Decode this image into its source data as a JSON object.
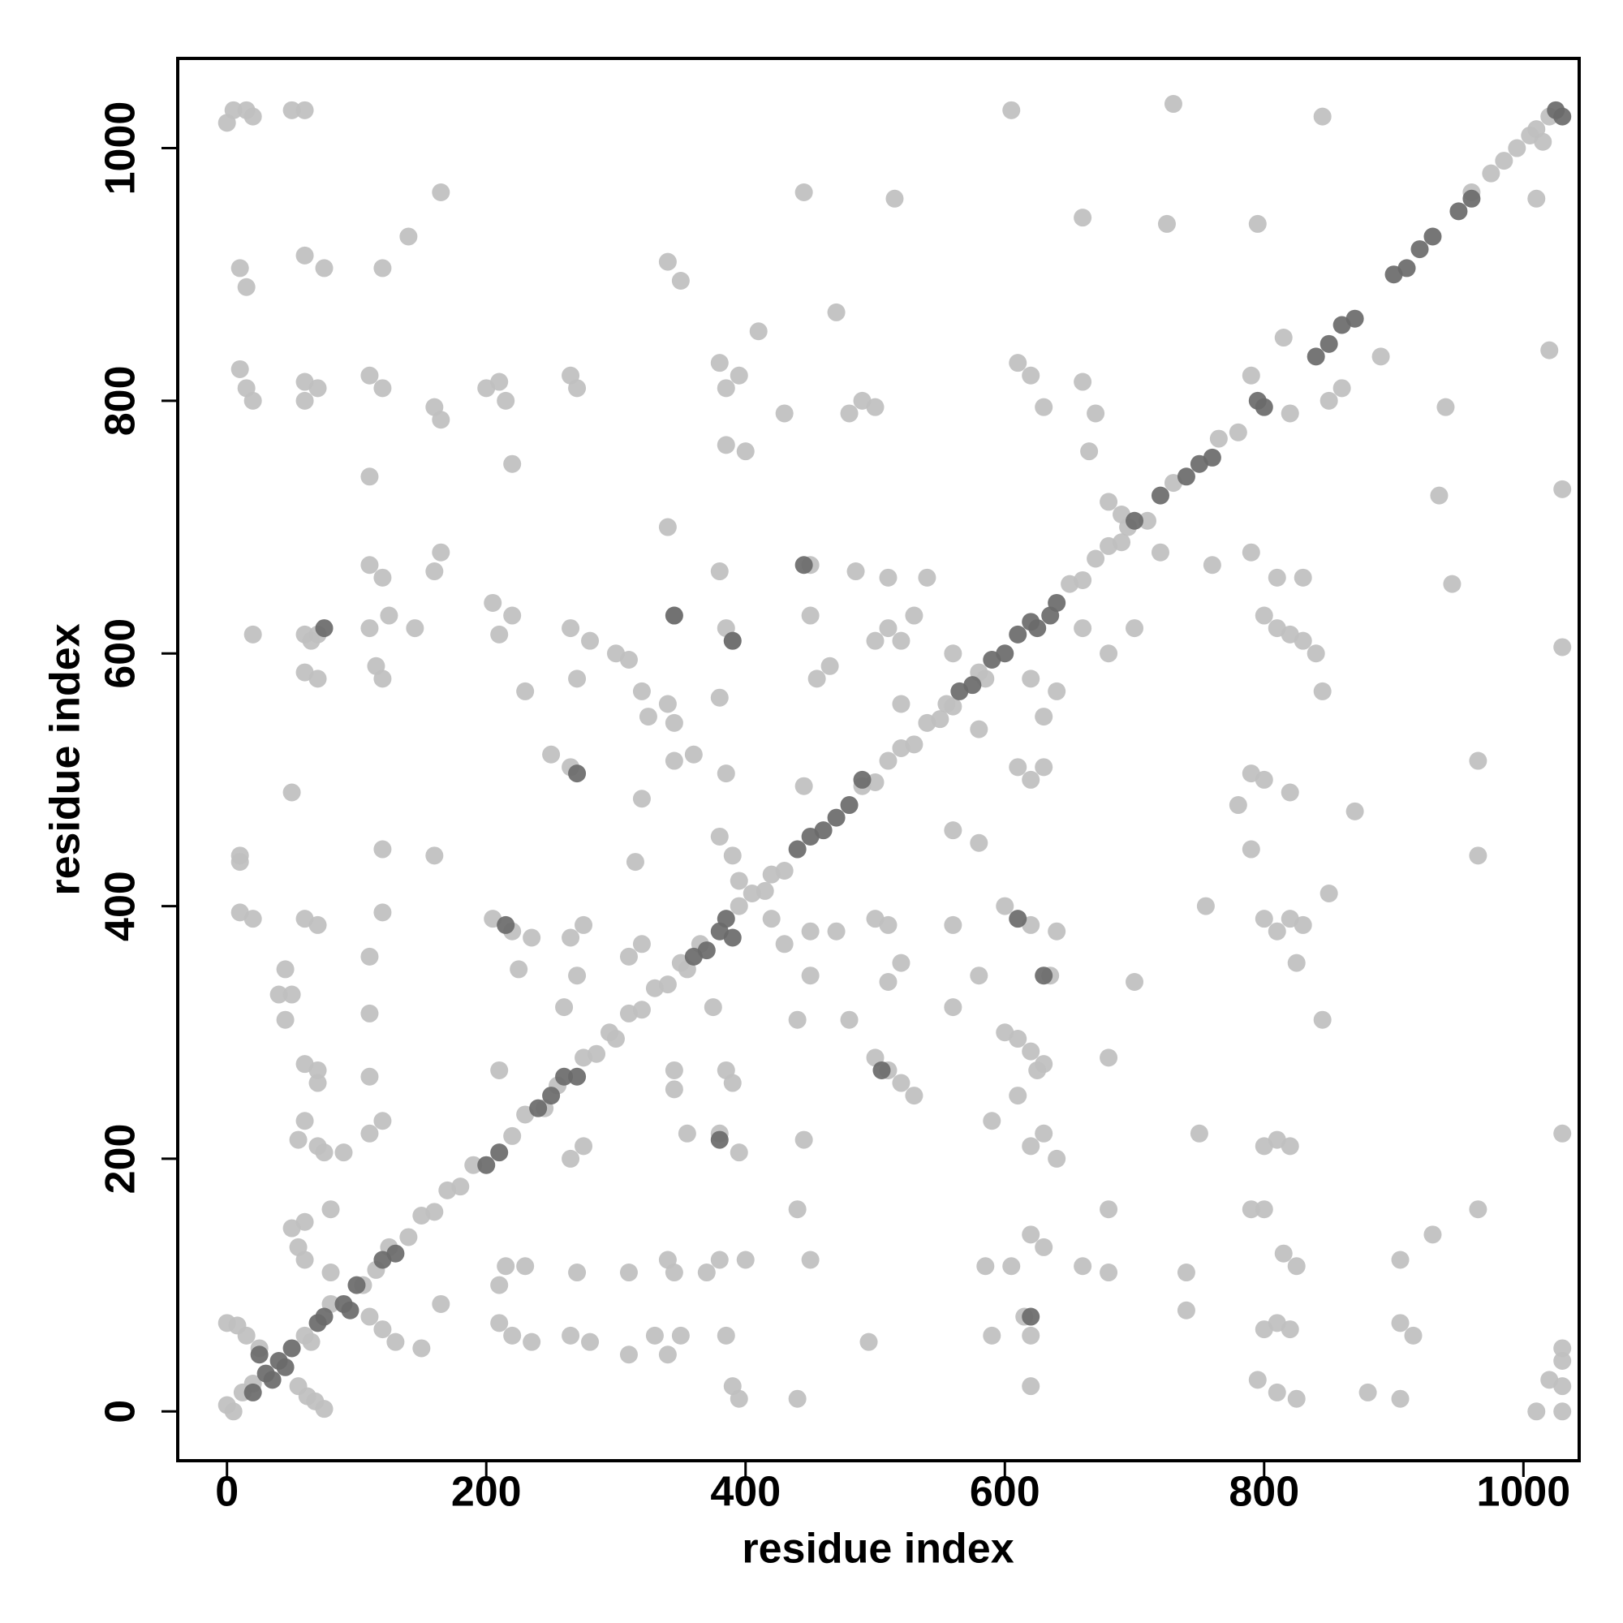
{
  "chart_data": {
    "type": "scatter",
    "xlabel": "residue index",
    "ylabel": "residue index",
    "xlim": [
      -38,
      1043
    ],
    "ylim": [
      -39,
      1071
    ],
    "xticks": [
      0,
      200,
      400,
      600,
      800,
      1000
    ],
    "yticks": [
      0,
      200,
      400,
      600,
      800,
      1000
    ],
    "grid": false,
    "series": [
      {
        "color": "#bfbfbf",
        "x": [
          0,
          5,
          12,
          20,
          80,
          105,
          115,
          125,
          140,
          150,
          160,
          170,
          180,
          190,
          220,
          230,
          245,
          255,
          275,
          285,
          295,
          300,
          310,
          320,
          330,
          340,
          350,
          355,
          365,
          395,
          405,
          415,
          420,
          430,
          490,
          500,
          510,
          520,
          530,
          540,
          550,
          555,
          560,
          580,
          585,
          650,
          660,
          670,
          680,
          690,
          695,
          710,
          730,
          765,
          780,
          960,
          975,
          985,
          995,
          1005,
          1010,
          1015,
          1020,
          0,
          8,
          15,
          25,
          55,
          62,
          68,
          75,
          60,
          65,
          0,
          5,
          15,
          50,
          60,
          20,
          10,
          15,
          60,
          75,
          10,
          15,
          20,
          60,
          70,
          60,
          110,
          120,
          160,
          165,
          200,
          210,
          215,
          220,
          265,
          270,
          380,
          385,
          395,
          410,
          400,
          385,
          430,
          470,
          480,
          490,
          500,
          610,
          620,
          630,
          660,
          670,
          665,
          605,
          730,
          845,
          660,
          725,
          795,
          850,
          860,
          815,
          820,
          790,
          165,
          140,
          120,
          340,
          350,
          445,
          515,
          1010,
          1020,
          890,
          940,
          935,
          1030,
          945,
          1030,
          965,
          965,
          965,
          1030,
          930,
          905,
          905,
          915,
          880,
          905,
          1030,
          1030,
          1030,
          1020,
          1010,
          1030,
          795,
          810,
          825,
          800,
          810,
          820,
          800,
          810,
          820,
          800,
          790,
          815,
          825,
          800,
          810,
          820,
          830,
          825,
          845,
          790,
          790,
          800,
          820,
          780,
          850,
          870,
          755,
          700,
          750,
          740,
          740,
          680,
          680,
          660,
          680,
          620,
          630,
          605,
          615,
          620,
          620,
          590,
          585,
          620,
          630,
          640,
          610,
          625,
          630,
          600,
          610,
          620,
          590,
          635,
          560,
          580,
          560,
          510,
          520,
          500,
          510,
          500,
          510,
          520,
          530,
          495,
          600,
          620,
          640,
          560,
          580,
          620,
          630,
          610,
          630,
          640,
          620,
          580,
          520,
          500,
          510,
          530,
          510,
          540,
          560,
          660,
          680,
          700,
          720,
          680,
          690,
          760,
          790,
          800,
          810,
          820,
          830,
          840,
          810,
          830,
          845,
          60,
          65,
          70,
          60,
          70,
          20,
          10,
          10,
          10,
          20,
          50,
          45,
          50,
          40,
          45,
          60,
          70,
          70,
          60,
          55,
          70,
          75,
          90,
          60,
          70,
          60,
          50,
          55,
          60,
          80,
          80,
          110,
          110,
          120,
          110,
          115,
          120,
          125,
          145,
          160,
          165,
          110,
          120,
          110,
          110,
          120,
          110,
          120,
          160,
          110,
          120,
          130,
          150,
          165,
          205,
          220,
          210,
          205,
          220,
          210,
          225,
          235,
          230,
          210,
          215,
          230,
          210,
          220,
          235,
          265,
          280,
          270,
          265,
          275,
          265,
          275,
          270,
          260,
          250,
          265,
          270,
          265,
          280,
          300,
          310,
          320,
          325,
          320,
          315,
          310,
          320,
          310,
          310,
          330,
          340,
          350,
          345,
          370,
          340,
          345,
          360,
          340,
          345,
          345,
          340,
          345,
          345,
          355,
          375,
          380,
          385,
          390,
          385,
          380,
          380,
          390,
          395,
          385,
          390,
          380,
          395,
          385,
          390,
          395,
          380,
          400,
          420,
          430,
          440,
          445,
          440,
          450,
          440,
          450,
          450,
          455,
          450,
          465,
          445,
          450,
          470,
          480,
          485,
          520
        ],
        "values": [
          5,
          0,
          15,
          22,
          85,
          100,
          112,
          130,
          138,
          155,
          158,
          175,
          178,
          195,
          218,
          235,
          240,
          258,
          280,
          283,
          300,
          295,
          315,
          318,
          335,
          338,
          355,
          350,
          370,
          400,
          410,
          412,
          425,
          428,
          495,
          498,
          515,
          525,
          528,
          545,
          548,
          560,
          558,
          585,
          580,
          655,
          658,
          675,
          685,
          688,
          700,
          705,
          735,
          770,
          775,
          965,
          980,
          990,
          1000,
          1010,
          1015,
          1005,
          1025,
          70,
          68,
          60,
          50,
          20,
          12,
          8,
          2,
          60,
          55,
          1020,
          1030,
          1030,
          1030,
          1030,
          1025,
          905,
          890,
          915,
          905,
          825,
          810,
          800,
          815,
          810,
          800,
          820,
          810,
          795,
          785,
          810,
          815,
          800,
          750,
          820,
          810,
          830,
          810,
          820,
          855,
          760,
          765,
          790,
          870,
          790,
          800,
          795,
          830,
          820,
          795,
          815,
          790,
          760,
          1030,
          1035,
          1025,
          945,
          940,
          940,
          800,
          810,
          850,
          790,
          820,
          965,
          930,
          905,
          910,
          895,
          965,
          960,
          960,
          840,
          835,
          795,
          725,
          730,
          655,
          605,
          515,
          440,
          160,
          220,
          140,
          120,
          70,
          60,
          15,
          10,
          50,
          40,
          20,
          25,
          0,
          0,
          25,
          15,
          10,
          65,
          70,
          65,
          210,
          215,
          210,
          160,
          160,
          125,
          115,
          390,
          380,
          390,
          385,
          355,
          310,
          445,
          505,
          500,
          490,
          480,
          410,
          475,
          400,
          340,
          220,
          110,
          80,
          280,
          160,
          115,
          110,
          140,
          130,
          115,
          75,
          60,
          20,
          60,
          115,
          210,
          220,
          200,
          250,
          270,
          275,
          300,
          295,
          285,
          230,
          345,
          385,
          345,
          320,
          340,
          355,
          390,
          385,
          280,
          270,
          260,
          250,
          55,
          400,
          385,
          380,
          460,
          450,
          500,
          510,
          510,
          550,
          570,
          580,
          540,
          560,
          610,
          620,
          630,
          660,
          660,
          600,
          620,
          600,
          620,
          680,
          720,
          710,
          670,
          680,
          630,
          620,
          615,
          610,
          600,
          660,
          660,
          570,
          615,
          610,
          615,
          585,
          580,
          615,
          440,
          435,
          395,
          390,
          490,
          350,
          330,
          330,
          310,
          275,
          270,
          260,
          230,
          215,
          210,
          205,
          205,
          390,
          385,
          150,
          145,
          130,
          120,
          110,
          160,
          740,
          670,
          660,
          620,
          590,
          580,
          630,
          620,
          665,
          680,
          360,
          395,
          315,
          265,
          230,
          220,
          445,
          440,
          75,
          65,
          55,
          50,
          85,
          640,
          630,
          615,
          390,
          380,
          270,
          350,
          375,
          570,
          100,
          115,
          115,
          70,
          60,
          55,
          60,
          55,
          110,
          200,
          210,
          375,
          385,
          345,
          320,
          520,
          510,
          580,
          620,
          610,
          600,
          595,
          570,
          550,
          485,
          435,
          360,
          370,
          110,
          45,
          60,
          45,
          60,
          110,
          110,
          120,
          515,
          520,
          560,
          545,
          630,
          700,
          270,
          255,
          220,
          320,
          565,
          620,
          610,
          505,
          665,
          455,
          440,
          420,
          270,
          260,
          220,
          205,
          60,
          20,
          10,
          120,
          120,
          390,
          370,
          310,
          215,
          160,
          120,
          10,
          345,
          630,
          580,
          670,
          590,
          495,
          380,
          380,
          310,
          665,
          610
        ]
      },
      {
        "color": "#6a6a6a",
        "x": [
          30,
          35,
          40,
          20,
          25,
          45,
          50,
          70,
          75,
          90,
          95,
          100,
          120,
          130,
          200,
          210,
          240,
          250,
          260,
          270,
          360,
          370,
          380,
          385,
          390,
          440,
          450,
          460,
          470,
          480,
          490,
          565,
          575,
          590,
          600,
          610,
          620,
          625,
          635,
          640,
          700,
          720,
          740,
          750,
          760,
          795,
          800,
          840,
          850,
          860,
          870,
          900,
          910,
          920,
          930,
          950,
          960,
          1025,
          1030,
          215,
          380,
          270,
          505,
          610,
          390,
          620,
          75,
          345,
          630,
          445
        ],
        "values": [
          30,
          25,
          40,
          15,
          45,
          35,
          50,
          70,
          75,
          85,
          80,
          100,
          120,
          125,
          195,
          205,
          240,
          250,
          265,
          265,
          360,
          365,
          380,
          390,
          375,
          445,
          455,
          460,
          470,
          480,
          500,
          570,
          575,
          595,
          600,
          615,
          625,
          620,
          630,
          640,
          705,
          725,
          740,
          750,
          755,
          800,
          795,
          835,
          845,
          860,
          865,
          900,
          905,
          920,
          930,
          950,
          960,
          1030,
          1025,
          385,
          215,
          505,
          270,
          390,
          610,
          75,
          620,
          630,
          345,
          670
        ]
      }
    ]
  }
}
